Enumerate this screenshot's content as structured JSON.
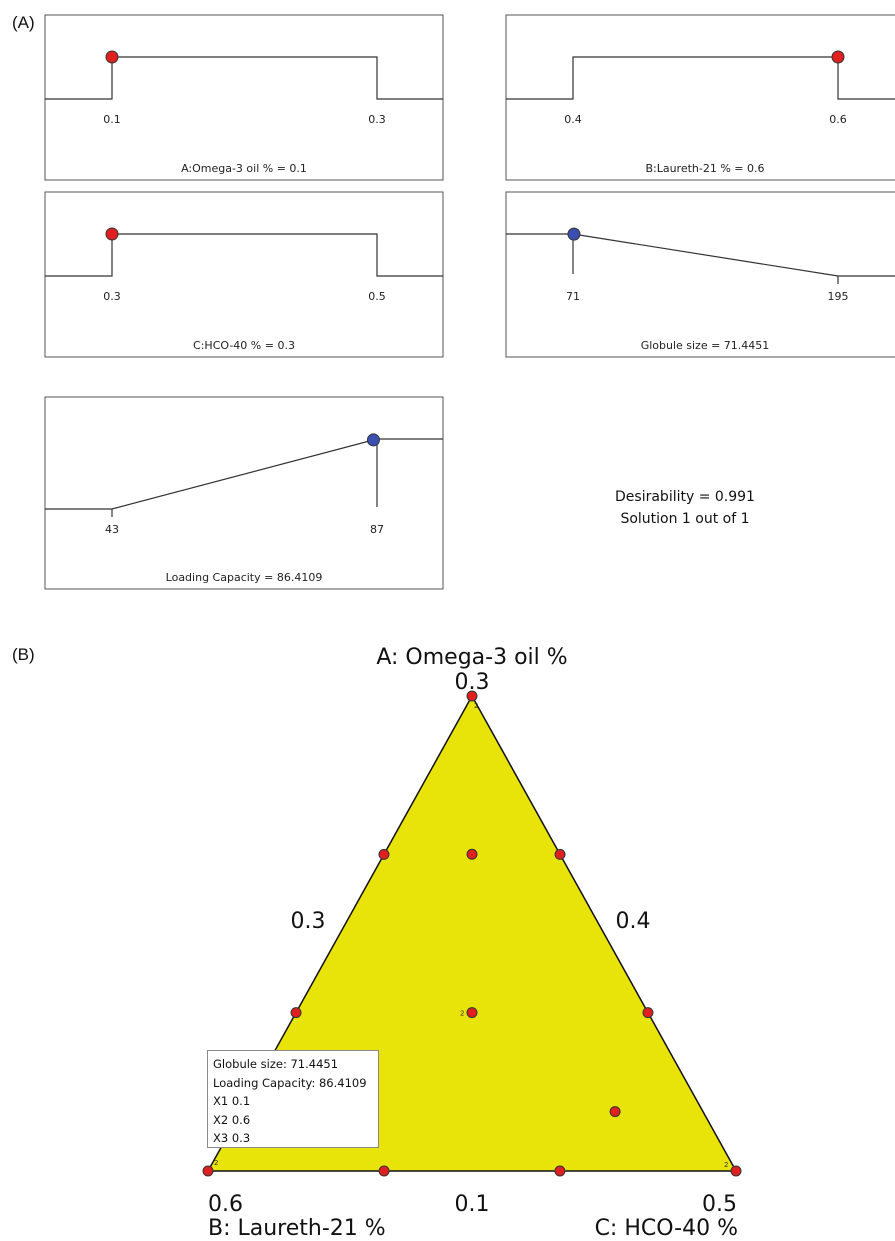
{
  "panel_a": {
    "label": "(A)"
  },
  "panel_b": {
    "label": "(B)"
  },
  "chart_data": [
    {
      "type": "desirability-ramps",
      "ramps": [
        {
          "caption": "A:Omega-3 oil % = 0.1",
          "low_label": "0.1",
          "high_label": "0.3",
          "low": 0.1,
          "high": 0.3,
          "value": 0.1,
          "shape": "range",
          "marker_color": "#e02020"
        },
        {
          "caption": "B:Laureth-21 % = 0.6",
          "low_label": "0.4",
          "high_label": "0.6",
          "low": 0.4,
          "high": 0.6,
          "value": 0.6,
          "shape": "range",
          "marker_color": "#e02020"
        },
        {
          "caption": "C:HCO-40 % = 0.3",
          "low_label": "0.3",
          "high_label": "0.5",
          "low": 0.3,
          "high": 0.5,
          "value": 0.3,
          "shape": "range",
          "marker_color": "#e02020"
        },
        {
          "caption": "Globule size = 71.4451",
          "low_label": "71",
          "high_label": "195",
          "low": 71,
          "high": 195,
          "value": 71.4451,
          "shape": "minimize",
          "marker_color": "#3a4fb0"
        },
        {
          "caption": "Loading Capacity = 86.4109",
          "low_label": "43",
          "high_label": "87",
          "low": 43,
          "high": 87,
          "value": 86.4109,
          "shape": "maximize",
          "marker_color": "#3a4fb0"
        }
      ],
      "desirability_text": "Desirability = 0.991",
      "solution_text": "Solution 1 out of 1"
    },
    {
      "type": "scatter",
      "subtype": "ternary",
      "fill_color": "#e8e40a",
      "point_color": "#e02020",
      "vertex_labels": {
        "top": {
          "axis": "A: Omega-3 oil %",
          "value": "0.3"
        },
        "bottom_left": {
          "axis": "B: Laureth-21 %",
          "value": "0.6"
        },
        "bottom_right": {
          "axis": "C: HCO-40 %",
          "value": "0.5"
        }
      },
      "edge_labels": {
        "left": "0.3",
        "right": "0.4",
        "bottom": "0.1"
      },
      "points": [
        {
          "A": 0.3,
          "B": 0.4,
          "C": 0.3,
          "replicates": "2"
        },
        {
          "A": 0.1,
          "B": 0.6,
          "C": 0.3,
          "replicates": "2"
        },
        {
          "A": 0.1,
          "B": 0.4,
          "C": 0.5,
          "replicates": "2"
        },
        {
          "A": 0.2333,
          "B": 0.4667,
          "C": 0.3
        },
        {
          "A": 0.1667,
          "B": 0.5333,
          "C": 0.3
        },
        {
          "A": 0.2333,
          "B": 0.4,
          "C": 0.3667
        },
        {
          "A": 0.1667,
          "B": 0.4,
          "C": 0.4333
        },
        {
          "A": 0.1,
          "B": 0.5333,
          "C": 0.3667
        },
        {
          "A": 0.1,
          "B": 0.4667,
          "C": 0.4333
        },
        {
          "A": 0.2333,
          "B": 0.4333,
          "C": 0.3333
        },
        {
          "A": 0.1667,
          "B": 0.4667,
          "C": 0.3667,
          "replicates": "2"
        },
        {
          "A": 0.125,
          "B": 0.4333,
          "C": 0.4417
        }
      ],
      "tooltip": {
        "globule": "Globule size:  71.4451",
        "loading": "Loading Capacity:  86.4109",
        "x1": "X1  0.1",
        "x2": "X2  0.6",
        "x3": "X3  0.3"
      }
    }
  ]
}
